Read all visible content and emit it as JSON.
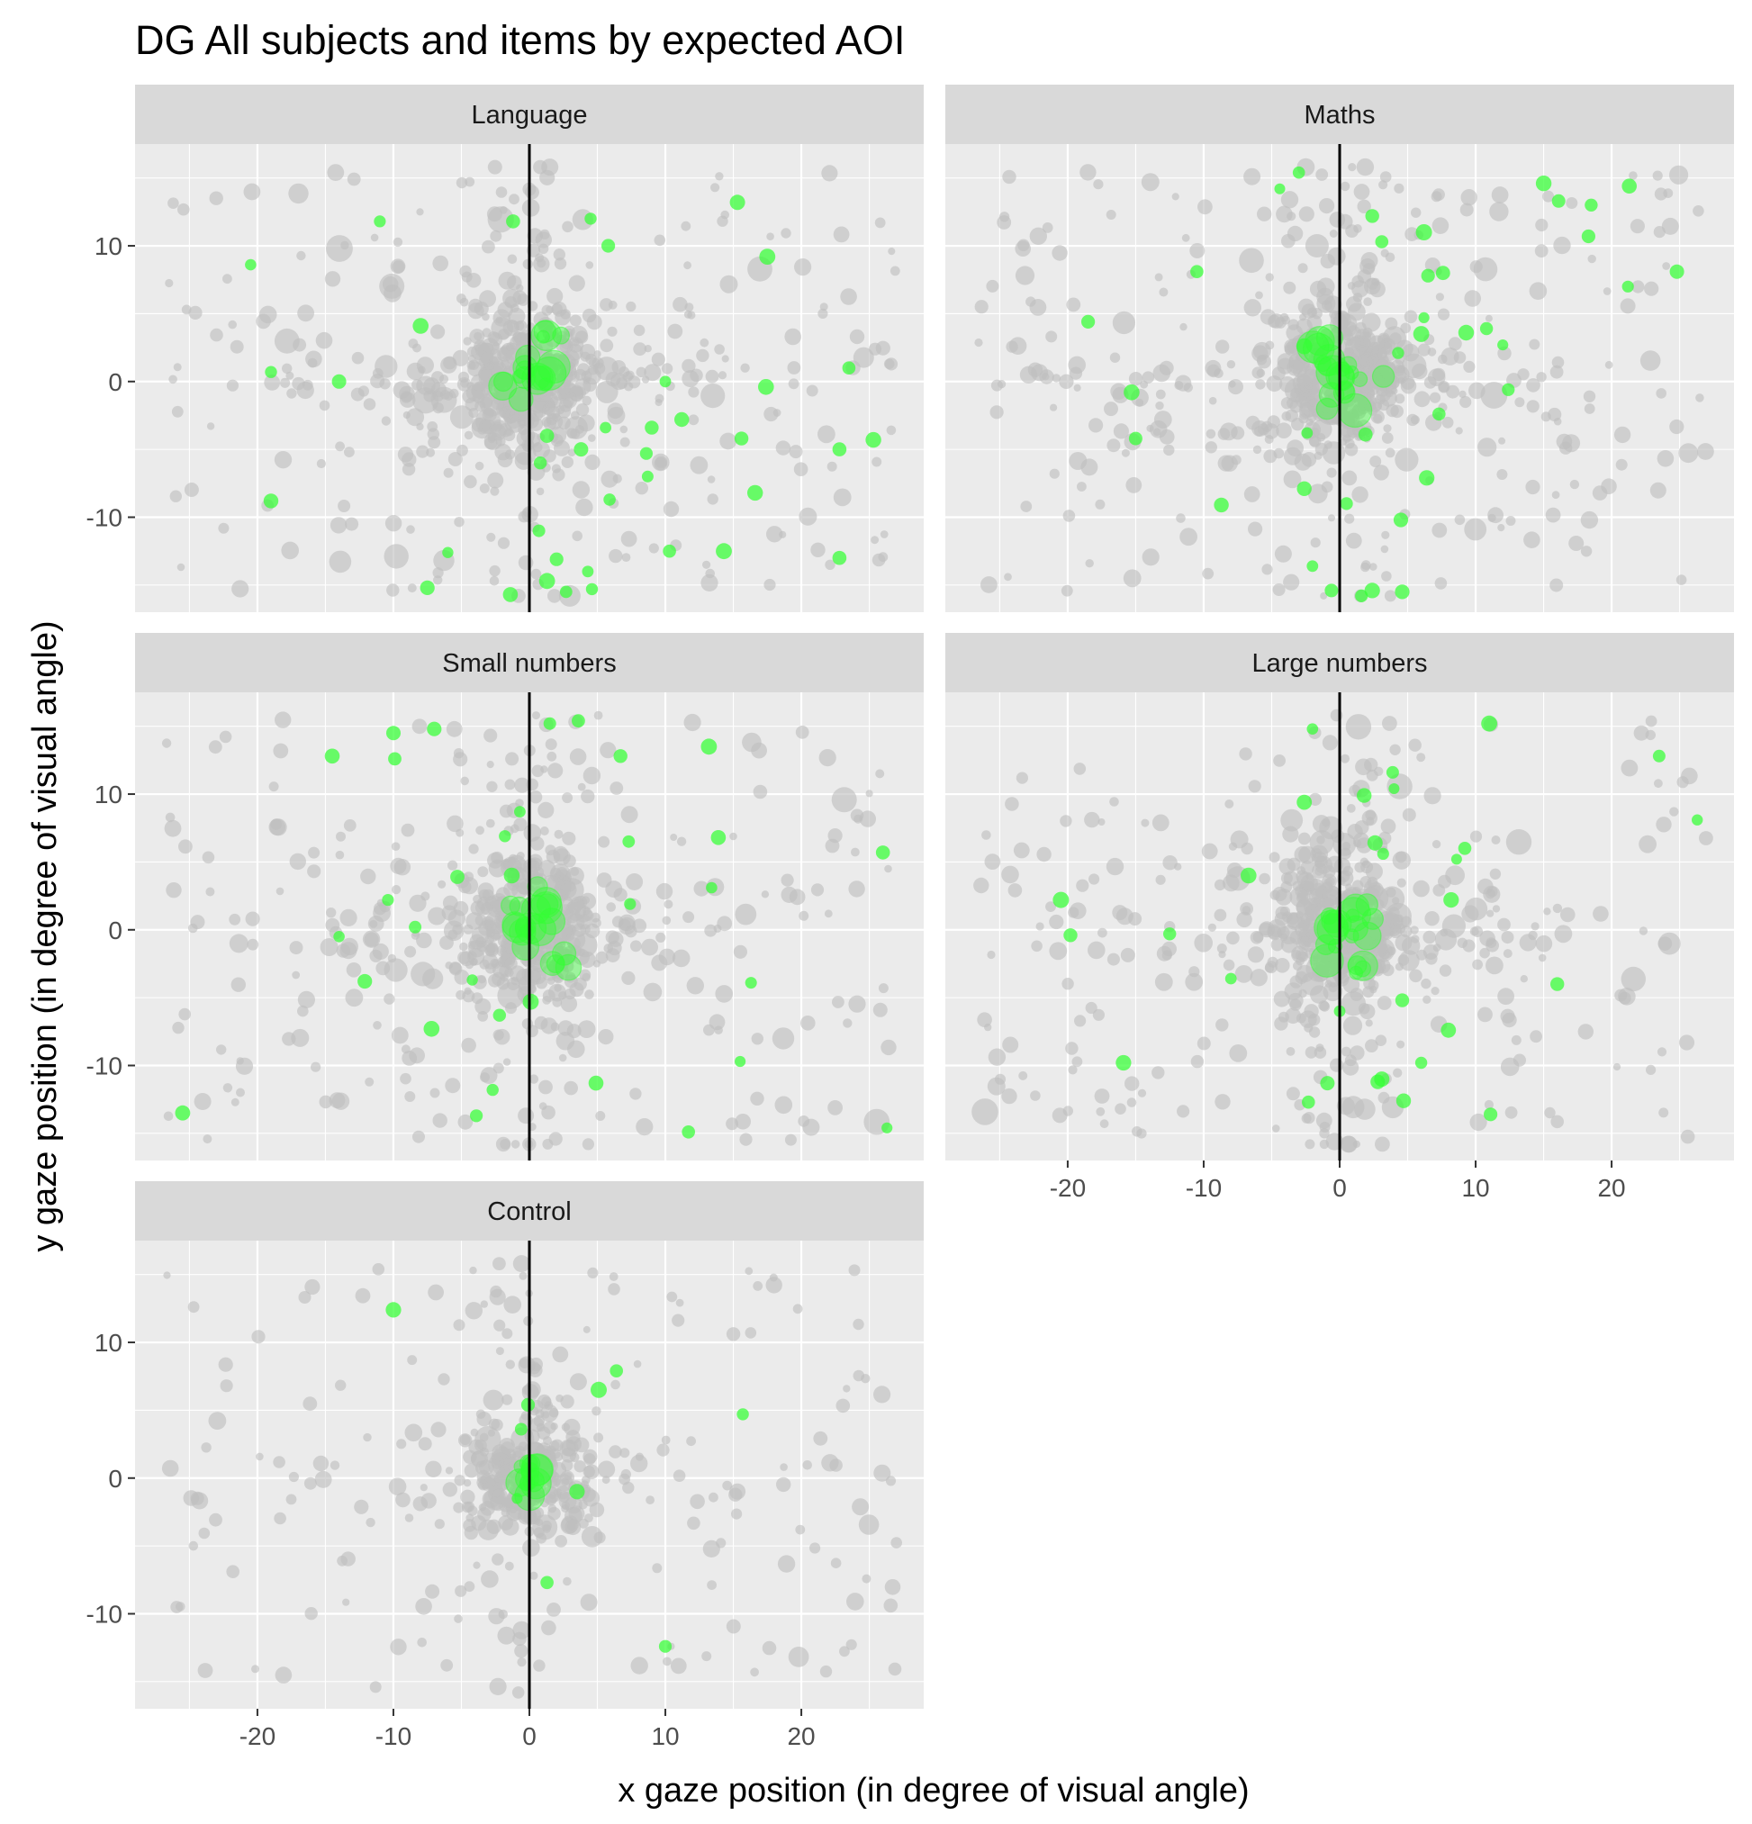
{
  "chart_data": {
    "type": "scatter",
    "title": "DG All subjects and items by expected AOI",
    "xlabel": "x gaze position (in degree of visual angle)",
    "ylabel": "y gaze position (in degree of visual angle)",
    "xlim": [
      -29,
      29
    ],
    "ylim": [
      -17,
      17.5
    ],
    "x_ticks": [
      -20,
      -10,
      0,
      10,
      20
    ],
    "x_tick_labels": [
      "-20",
      "-10",
      "0",
      "10",
      "20"
    ],
    "y_ticks": [
      -10,
      0,
      10
    ],
    "y_tick_labels": [
      "-10",
      "0",
      "10"
    ],
    "grid": true,
    "vline_x": 0,
    "colors": {
      "other_aoi": "#bebebe",
      "expected_aoi": "#33ff33",
      "panel_bg": "#ebebeb",
      "strip_bg": "#d9d9d9",
      "vline": "#000000"
    },
    "series": [
      {
        "key": "other",
        "color": "#bebebe"
      },
      {
        "key": "expected",
        "color": "#33ff33"
      }
    ],
    "panels": [
      {
        "label": "Language",
        "points_expected": [
          [
            -11,
            11.8
          ],
          [
            -1.2,
            11.8
          ],
          [
            4.5,
            12
          ],
          [
            5.8,
            10
          ],
          [
            15.3,
            13.2
          ],
          [
            17.5,
            9.2
          ],
          [
            -20.5,
            8.6
          ],
          [
            -8,
            4.1
          ],
          [
            -19,
            0.7
          ],
          [
            -14,
            0
          ],
          [
            10,
            0
          ],
          [
            17.4,
            -0.4
          ],
          [
            23.5,
            1
          ],
          [
            11.2,
            -2.8
          ],
          [
            9,
            -3.4
          ],
          [
            5.6,
            -3.4
          ],
          [
            1.3,
            -4
          ],
          [
            3.8,
            -5
          ],
          [
            15.6,
            -4.2
          ],
          [
            25.3,
            -4.3
          ],
          [
            22.8,
            -5
          ],
          [
            8.6,
            -5.3
          ],
          [
            8.7,
            -7
          ],
          [
            16.6,
            -8.2
          ],
          [
            5.9,
            -8.7
          ],
          [
            -19,
            -8.8
          ],
          [
            -6,
            -12.6
          ],
          [
            10.3,
            -12.5
          ],
          [
            14.3,
            -12.5
          ],
          [
            22.8,
            -13
          ],
          [
            2,
            -13.1
          ],
          [
            4.3,
            -14
          ],
          [
            -7.5,
            -15.2
          ],
          [
            -1.4,
            -15.7
          ],
          [
            1.3,
            -14.7
          ],
          [
            4.6,
            -15.3
          ],
          [
            2.7,
            -15.5
          ],
          [
            0.8,
            -6
          ],
          [
            0.7,
            -11
          ]
        ],
        "expected_clusters": [
          {
            "x": 0.3,
            "y": 0.3,
            "n": 14,
            "radius": 3.2
          },
          {
            "x": 1.5,
            "y": 3.5,
            "n": 4,
            "radius": 1.5
          }
        ],
        "points_other_count": 700
      },
      {
        "label": "Maths",
        "points_expected": [
          [
            -4.4,
            14.2
          ],
          [
            -3,
            15.4
          ],
          [
            15,
            14.6
          ],
          [
            16.1,
            13.3
          ],
          [
            18.5,
            13
          ],
          [
            21.3,
            14.4
          ],
          [
            18.3,
            10.7
          ],
          [
            2.4,
            12.2
          ],
          [
            6.2,
            11
          ],
          [
            3.1,
            10.3
          ],
          [
            -10.5,
            8.1
          ],
          [
            7.6,
            8
          ],
          [
            6.5,
            7.8
          ],
          [
            21.2,
            7
          ],
          [
            24.8,
            8.1
          ],
          [
            6.2,
            4.7
          ],
          [
            9.3,
            3.6
          ],
          [
            10.8,
            3.9
          ],
          [
            -18.5,
            4.4
          ],
          [
            12,
            2.7
          ],
          [
            6,
            3.5
          ],
          [
            4.3,
            2.1
          ],
          [
            -2.6,
            2.6
          ],
          [
            -15.3,
            -0.8
          ],
          [
            12.4,
            -0.6
          ],
          [
            7.3,
            -2.4
          ],
          [
            -15,
            -4.2
          ],
          [
            -2.4,
            -3.8
          ],
          [
            1.9,
            -3.9
          ],
          [
            6.4,
            -7.1
          ],
          [
            -8.7,
            -9.1
          ],
          [
            -2.6,
            -7.9
          ],
          [
            4.5,
            -10.2
          ],
          [
            -2,
            -13.6
          ],
          [
            -0.6,
            -15.4
          ],
          [
            2.4,
            -15.4
          ],
          [
            4.6,
            -15.5
          ],
          [
            1.6,
            -15.8
          ],
          [
            0.5,
            -9
          ]
        ],
        "expected_clusters": [
          {
            "x": 0,
            "y": 0.3,
            "n": 16,
            "radius": 3
          },
          {
            "x": -1.5,
            "y": 3,
            "n": 4,
            "radius": 1.5
          }
        ],
        "points_other_count": 700
      },
      {
        "label": "Small numbers",
        "points_expected": [
          [
            -10,
            14.5
          ],
          [
            -7,
            14.8
          ],
          [
            -14.5,
            12.8
          ],
          [
            -9.9,
            12.6
          ],
          [
            1.5,
            15.2
          ],
          [
            3.6,
            15.4
          ],
          [
            6.7,
            12.8
          ],
          [
            13.2,
            13.5
          ],
          [
            13.9,
            6.8
          ],
          [
            7.3,
            6.5
          ],
          [
            26,
            5.7
          ],
          [
            -1.8,
            6.9
          ],
          [
            -0.7,
            8.7
          ],
          [
            -5.3,
            3.9
          ],
          [
            13.4,
            3.1
          ],
          [
            -10.4,
            2.2
          ],
          [
            7.4,
            1.9
          ],
          [
            -8.4,
            0.2
          ],
          [
            -14,
            -0.5
          ],
          [
            -12.1,
            -3.8
          ],
          [
            -4.2,
            -3.7
          ],
          [
            16.3,
            -3.9
          ],
          [
            -2.2,
            -6.3
          ],
          [
            -7.2,
            -7.3
          ],
          [
            15.5,
            -9.7
          ],
          [
            -2.7,
            -11.8
          ],
          [
            4.9,
            -11.3
          ],
          [
            -25.5,
            -13.5
          ],
          [
            -3.9,
            -13.7
          ],
          [
            11.7,
            -14.9
          ],
          [
            26.3,
            -14.6
          ],
          [
            0.1,
            -5.3
          ],
          [
            -1.3,
            4
          ]
        ],
        "expected_clusters": [
          {
            "x": 0.3,
            "y": 0.5,
            "n": 16,
            "radius": 3.3
          },
          {
            "x": 2.5,
            "y": -2.5,
            "n": 4,
            "radius": 1.5
          }
        ],
        "points_other_count": 650
      },
      {
        "label": "Large numbers",
        "points_expected": [
          [
            -2,
            14.8
          ],
          [
            11,
            15.2
          ],
          [
            23.5,
            12.8
          ],
          [
            26.3,
            8.1
          ],
          [
            4,
            10.4
          ],
          [
            3.9,
            11.6
          ],
          [
            1.8,
            9.9
          ],
          [
            -2.6,
            9.4
          ],
          [
            2.6,
            6.4
          ],
          [
            3.2,
            5.6
          ],
          [
            8.6,
            5.2
          ],
          [
            -6.7,
            4
          ],
          [
            9.2,
            6
          ],
          [
            -20.5,
            2.2
          ],
          [
            8.2,
            2.2
          ],
          [
            -12.5,
            -0.3
          ],
          [
            -19.8,
            -0.4
          ],
          [
            -8,
            -3.6
          ],
          [
            16,
            -4
          ],
          [
            4.6,
            -5.2
          ],
          [
            8,
            -7.4
          ],
          [
            6,
            -9.8
          ],
          [
            -15.9,
            -9.8
          ],
          [
            3.1,
            -11
          ],
          [
            2.8,
            -11.2
          ],
          [
            4.7,
            -12.6
          ],
          [
            -0.9,
            -11.3
          ],
          [
            -2.3,
            -12.7
          ],
          [
            11.1,
            -13.6
          ],
          [
            0,
            -6
          ]
        ],
        "expected_clusters": [
          {
            "x": 0,
            "y": 0.5,
            "n": 16,
            "radius": 3
          },
          {
            "x": 1.5,
            "y": -2.5,
            "n": 4,
            "radius": 1.5
          }
        ],
        "points_other_count": 650
      },
      {
        "label": "Control",
        "points_expected": [
          [
            -10,
            12.4
          ],
          [
            6.4,
            7.9
          ],
          [
            5.1,
            6.5
          ],
          [
            15.7,
            4.7
          ],
          [
            -0.6,
            3.6
          ],
          [
            -0.1,
            5.4
          ],
          [
            3.5,
            -1
          ],
          [
            -0.9,
            -1.5
          ],
          [
            1.3,
            -7.7
          ],
          [
            10,
            -12.4
          ]
        ],
        "expected_clusters": [
          {
            "x": 0,
            "y": 0.3,
            "n": 12,
            "radius": 2
          }
        ],
        "points_other_count": 450
      }
    ]
  }
}
